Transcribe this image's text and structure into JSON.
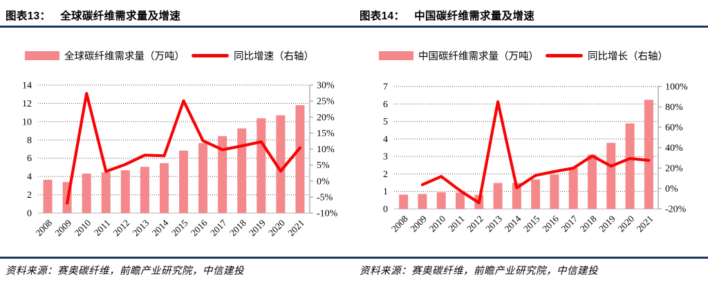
{
  "page": {
    "background": "#ffffff"
  },
  "colors": {
    "bar": "#f4888b",
    "line": "#f70505",
    "rule": "#17375e",
    "gridline": "#4d4d4d",
    "axis_line": "#a6a6a6",
    "baseline": "#d9d9d9",
    "text": "#000000"
  },
  "panels": [
    {
      "header": {
        "label": "图表13：",
        "title": "全球碳纤维需求量及增速"
      },
      "source": "资料来源：赛奥碳纤维，前瞻产业研究院，中信建投"
    },
    {
      "header": {
        "label": "图表14：",
        "title": "中国碳纤维需求量及增速"
      },
      "source": "资料来源：赛奥碳纤维，前瞻产业研究院，中信建投"
    }
  ],
  "chart_data": [
    {
      "type": "bar+line-dual-axis",
      "title": "全球碳纤维需求量及增速",
      "categories": [
        "2008",
        "2009",
        "2010",
        "2011",
        "2012",
        "2013",
        "2014",
        "2015",
        "2016",
        "2017",
        "2018",
        "2019",
        "2020",
        "2021"
      ],
      "series": [
        {
          "name": "全球碳纤维需求量（万吨）",
          "type": "bar",
          "axis": "left",
          "values": [
            3.64,
            3.39,
            4.32,
            4.45,
            4.68,
            5.06,
            5.46,
            6.83,
            7.65,
            8.42,
            9.26,
            10.37,
            10.69,
            11.8
          ]
        },
        {
          "name": "同比增速（右轴）",
          "type": "line",
          "axis": "right",
          "values_pct": [
            null,
            -6.9,
            27.4,
            3.0,
            5.2,
            8.1,
            7.9,
            25.1,
            12.6,
            9.8,
            11.0,
            12.3,
            3.1,
            10.4
          ]
        }
      ],
      "left_axis": {
        "min": 0,
        "max": 14,
        "ticks": [
          0,
          2,
          4,
          6,
          8,
          10,
          12,
          14
        ]
      },
      "right_axis": {
        "min_pct": -10,
        "max_pct": 30,
        "labels": [
          "30%",
          "25%",
          "20%",
          "15%",
          "10%",
          "5%",
          "0%",
          "-5%",
          "-10%"
        ]
      },
      "grid": "horizontal-dotted",
      "legend_position": "top"
    },
    {
      "type": "bar+line-dual-axis",
      "title": "中国碳纤维需求量及增速",
      "categories": [
        "2008",
        "2009",
        "2010",
        "2011",
        "2012",
        "2013",
        "2014",
        "2015",
        "2016",
        "2017",
        "2018",
        "2019",
        "2020",
        "2021"
      ],
      "series": [
        {
          "name": "中国碳纤维需求量（万吨）",
          "type": "bar",
          "axis": "left",
          "values": [
            0.82,
            0.85,
            0.95,
            0.93,
            0.8,
            1.48,
            1.49,
            1.68,
            1.96,
            2.35,
            3.1,
            3.78,
            4.89,
            6.24
          ]
        },
        {
          "name": "同比增长（右轴）",
          "type": "line",
          "axis": "right",
          "values_pct": [
            null,
            3.7,
            11.8,
            -2.1,
            -14.0,
            85.0,
            0.7,
            12.8,
            16.7,
            19.9,
            31.9,
            21.9,
            29.4,
            27.6
          ]
        }
      ],
      "left_axis": {
        "min": 0,
        "max": 7,
        "ticks": [
          0,
          1,
          2,
          3,
          4,
          5,
          6,
          7
        ]
      },
      "right_axis": {
        "min_pct": -20,
        "max_pct": 100,
        "labels": [
          "100%",
          "80%",
          "60%",
          "40%",
          "20%",
          "0%",
          "-20%"
        ]
      },
      "grid": "horizontal-dotted",
      "legend_position": "top"
    }
  ]
}
